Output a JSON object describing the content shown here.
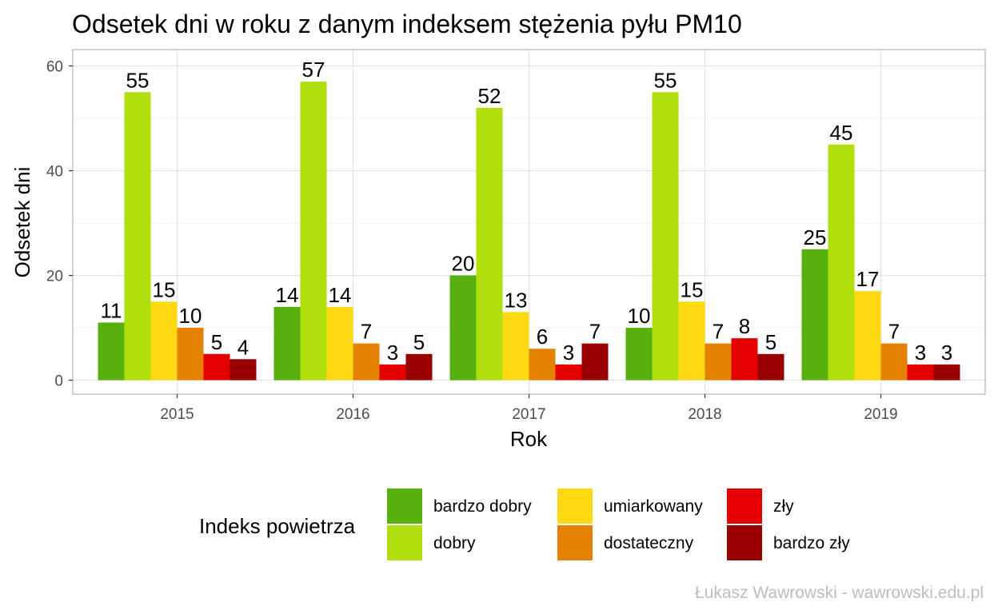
{
  "chart_data": {
    "type": "bar",
    "title": "Odsetek dni w roku z danym indeksem stężenia pyłu PM10",
    "xlabel": "Rok",
    "ylabel": "Odsetek dni",
    "categories": [
      "2015",
      "2016",
      "2017",
      "2018",
      "2019"
    ],
    "ylim": [
      0,
      60
    ],
    "yticks": [
      0,
      20,
      40,
      60
    ],
    "grid": true,
    "legend_title": "Indeks powietrza",
    "legend_position": "bottom",
    "series": [
      {
        "name": "bardzo dobry",
        "color": "#57B00D",
        "values": [
          11,
          14,
          20,
          10,
          25
        ]
      },
      {
        "name": "dobry",
        "color": "#B1DF0E",
        "values": [
          55,
          57,
          52,
          55,
          45
        ]
      },
      {
        "name": "umiarkowany",
        "color": "#FFD911",
        "values": [
          15,
          14,
          13,
          15,
          17
        ]
      },
      {
        "name": "dostateczny",
        "color": "#E58100",
        "values": [
          10,
          7,
          6,
          7,
          7
        ]
      },
      {
        "name": "zły",
        "color": "#E50000",
        "values": [
          5,
          3,
          3,
          8,
          3
        ]
      },
      {
        "name": "bardzo zły",
        "color": "#990000",
        "values": [
          4,
          5,
          7,
          5,
          3
        ]
      }
    ],
    "caption": "Łukasz Wawrowski - wawrowski.edu.pl"
  }
}
